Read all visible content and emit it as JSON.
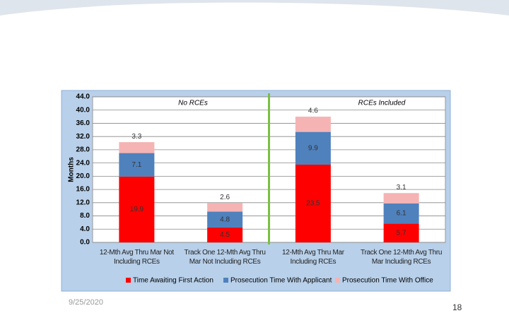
{
  "chart_data": {
    "type": "stacked_bar",
    "categories": [
      "12-Mth Avg Thru Mar Not Including RCEs",
      "Track One 12-Mth Avg Thru Mar Not Including RCEs",
      "12-Mth Avg Thru Mar Including RCEs",
      "Track One 12-Mth Avg Thru Mar Including RCEs"
    ],
    "series": [
      {
        "name": "Time Awaiting First Action",
        "color": "#ff0000",
        "values": [
          19.9,
          4.5,
          23.5,
          5.7
        ]
      },
      {
        "name": "Prosecution Time With Applicant",
        "color": "#4f81bd",
        "values": [
          7.1,
          4.8,
          9.9,
          6.1
        ]
      },
      {
        "name": "Prosecution Time With Office",
        "color": "#f6b3b3",
        "values": [
          3.3,
          2.6,
          4.6,
          3.1
        ]
      }
    ],
    "y_label": "Months",
    "annotations": [
      "No RCEs",
      "RCEs Included"
    ],
    "ylim": [
      0,
      44
    ],
    "yticks": [
      {
        "value": 0,
        "label": "0.0"
      },
      {
        "value": 4,
        "label": "4.0"
      },
      {
        "value": 8,
        "label": "8.0"
      },
      {
        "value": 12,
        "label": "12.0"
      },
      {
        "value": 16,
        "label": "16.0"
      },
      {
        "value": 20,
        "label": "20.0"
      },
      {
        "value": 24,
        "label": "24.0"
      },
      {
        "value": 28,
        "label": "28.0"
      },
      {
        "value": 32,
        "label": "32.0"
      },
      {
        "value": 36,
        "label": "36.0"
      },
      {
        "value": 40,
        "label": "40.0"
      },
      {
        "value": 44,
        "label": "44.0"
      }
    ],
    "grid": true
  },
  "footer": {
    "date": "9/25/2020",
    "page": "18"
  }
}
